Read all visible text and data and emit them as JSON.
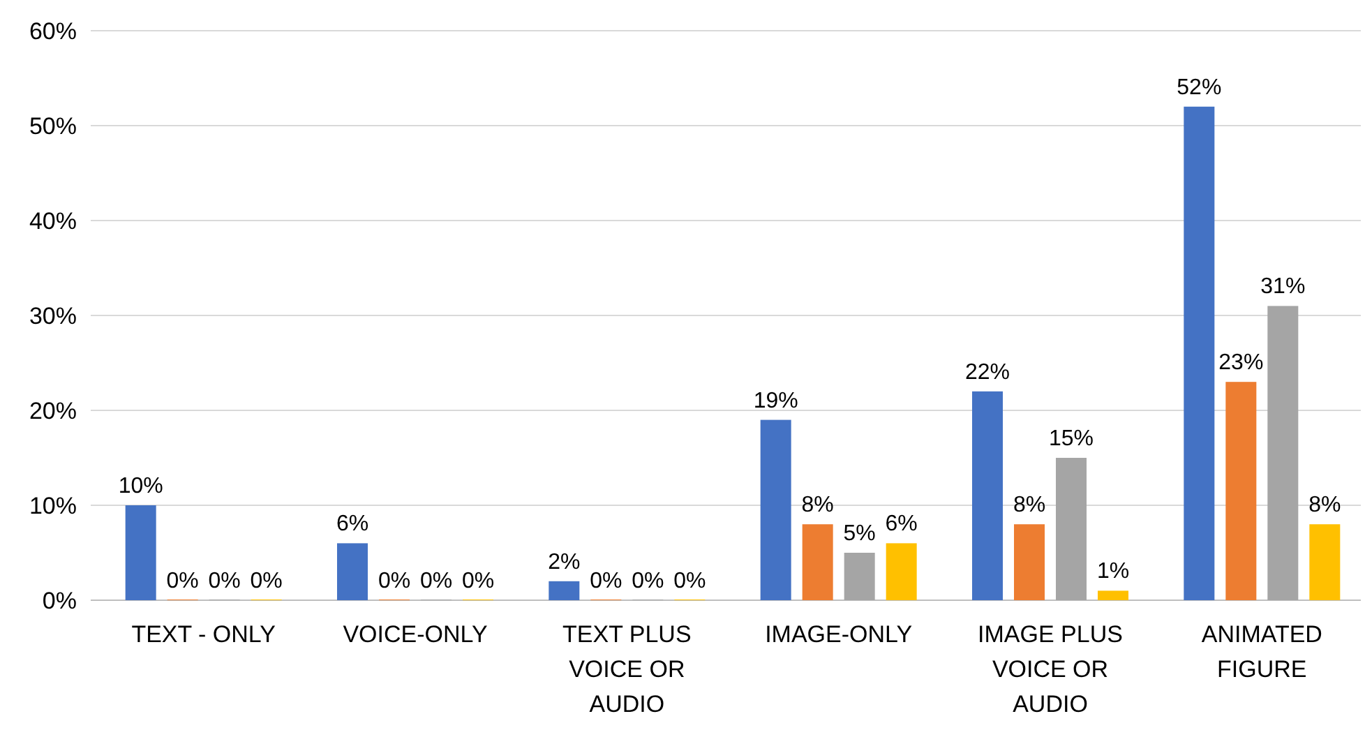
{
  "chart_data": {
    "type": "bar",
    "categories": [
      "TEXT - ONLY",
      "VOICE-ONLY",
      "TEXT PLUS VOICE OR AUDIO",
      "IMAGE-ONLY",
      "IMAGE PLUS VOICE OR AUDIO",
      "ANIMATED FIGURE"
    ],
    "series": [
      {
        "color": "#4472c4",
        "values": [
          10,
          6,
          2,
          19,
          22,
          52
        ],
        "value_labels": [
          "10%",
          "6%",
          "2%",
          "19%",
          "22%",
          "52%"
        ]
      },
      {
        "color": "#ed7d31",
        "values": [
          0,
          0,
          0,
          8,
          8,
          23
        ],
        "value_labels": [
          "0%",
          "0%",
          "0%",
          "8%",
          "8%",
          "23%"
        ]
      },
      {
        "color": "#a5a5a5",
        "values": [
          0,
          0,
          0,
          5,
          15,
          31
        ],
        "value_labels": [
          "0%",
          "0%",
          "0%",
          "5%",
          "15%",
          "31%"
        ]
      },
      {
        "color": "#ffc000",
        "values": [
          0,
          0,
          0,
          6,
          1,
          8
        ],
        "value_labels": [
          "0%",
          "0%",
          "0%",
          "6%",
          "1%",
          "8%"
        ]
      }
    ],
    "ylim": [
      0,
      60
    ],
    "yticks": [
      {
        "value": 0,
        "label": "0%"
      },
      {
        "value": 10,
        "label": "10%"
      },
      {
        "value": 20,
        "label": "20%"
      },
      {
        "value": 30,
        "label": "30%"
      },
      {
        "value": 40,
        "label": "40%"
      },
      {
        "value": 50,
        "label": "50%"
      },
      {
        "value": 60,
        "label": "60%"
      }
    ],
    "grid": "y"
  }
}
